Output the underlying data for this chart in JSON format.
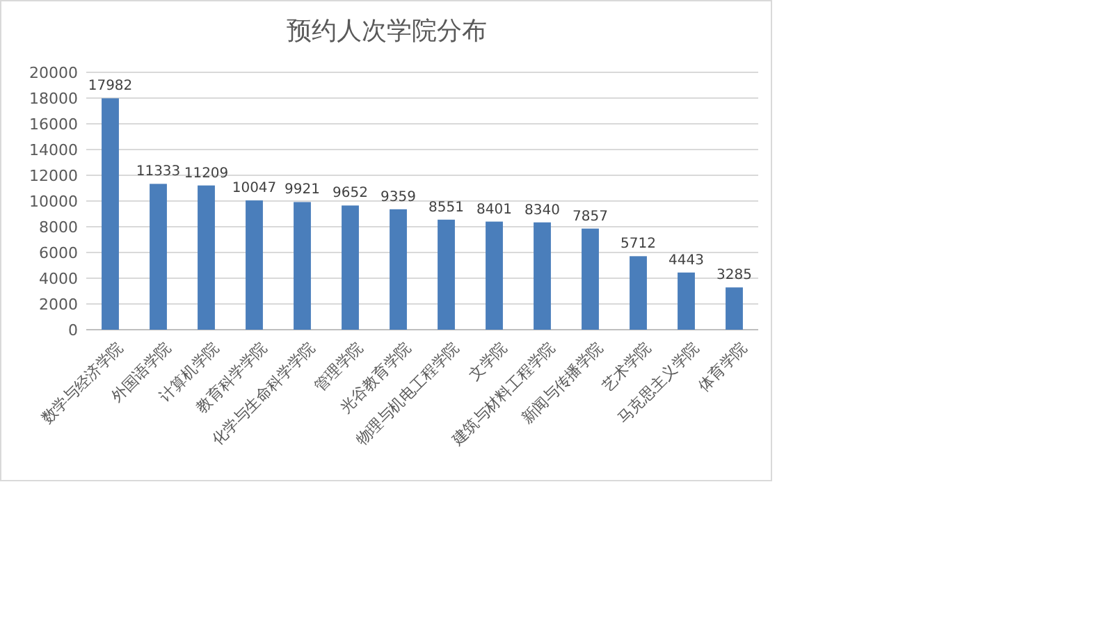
{
  "chart_data": {
    "type": "bar",
    "title": "预约人次学院分布",
    "categories": [
      "数学与经济学院",
      "外国语学院",
      "计算机学院",
      "教育科学学院",
      "化学与生命科学学院",
      "管理学院",
      "光谷教育学院",
      "物理与机电工程学院",
      "文学院",
      "建筑与材料工程学院",
      "新闻与传播学院",
      "艺术学院",
      "马克思主义学院",
      "体育学院"
    ],
    "values": [
      17982,
      11333,
      11209,
      10047,
      9921,
      9652,
      9359,
      8551,
      8401,
      8340,
      7857,
      5712,
      4443,
      3285
    ],
    "color": "#4a7ebb",
    "ylim": [
      0,
      20000
    ],
    "yticks": [
      0,
      2000,
      4000,
      6000,
      8000,
      10000,
      12000,
      14000,
      16000,
      18000,
      20000
    ],
    "grid": "y",
    "data_labels": true
  }
}
